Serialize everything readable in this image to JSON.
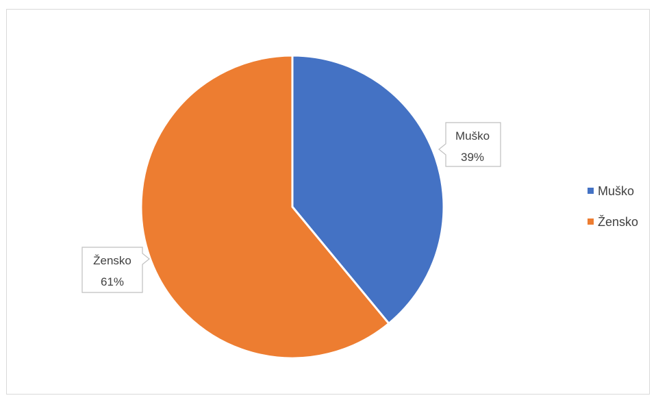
{
  "chart_data": {
    "type": "pie",
    "title": "",
    "categories": [
      "Muško",
      "Žensko"
    ],
    "values": [
      39,
      61
    ],
    "percent_labels": [
      "39%",
      "61%"
    ],
    "colors": [
      "#4472c4",
      "#ed7d31"
    ],
    "legend": {
      "placement": "right",
      "entries": [
        "Muško",
        "Žensko"
      ]
    }
  }
}
